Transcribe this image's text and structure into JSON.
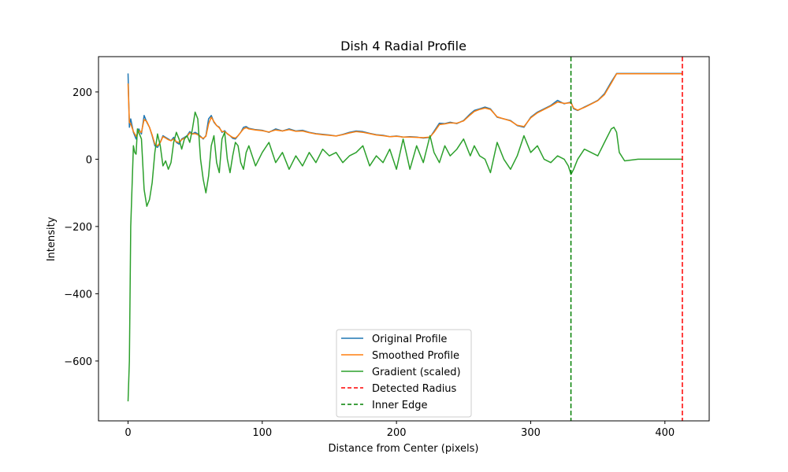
{
  "chart_data": {
    "type": "line",
    "title": "Dish 4 Radial Profile",
    "xlabel": "Distance from Center (pixels)",
    "ylabel": "Intensity",
    "xlim": [
      -22,
      433
    ],
    "ylim": [
      -778,
      305
    ],
    "xticks": [
      0,
      100,
      200,
      300,
      400
    ],
    "yticks": [
      -600,
      -400,
      -200,
      0,
      200
    ],
    "grid": false,
    "legend_position": "lower center",
    "series": [
      {
        "name": "Original Profile",
        "color": "#1f77b4",
        "x": [
          0,
          1,
          2,
          4,
          6,
          8,
          10,
          12,
          14,
          16,
          18,
          20,
          22,
          24,
          26,
          28,
          30,
          32,
          34,
          36,
          38,
          40,
          42,
          44,
          46,
          48,
          50,
          52,
          54,
          56,
          58,
          60,
          62,
          64,
          66,
          68,
          70,
          72,
          74,
          76,
          78,
          80,
          82,
          84,
          86,
          88,
          90,
          95,
          100,
          105,
          110,
          115,
          120,
          125,
          130,
          135,
          140,
          145,
          150,
          155,
          160,
          165,
          170,
          175,
          180,
          185,
          190,
          195,
          200,
          205,
          210,
          215,
          220,
          225,
          228,
          232,
          236,
          240,
          245,
          250,
          255,
          258,
          262,
          266,
          270,
          275,
          280,
          285,
          290,
          295,
          300,
          305,
          310,
          315,
          320,
          325,
          330,
          332,
          335,
          340,
          345,
          350,
          355,
          360,
          364,
          370,
          380,
          390,
          400,
          413
        ],
        "values": [
          255,
          95,
          120,
          80,
          60,
          90,
          75,
          130,
          110,
          95,
          70,
          40,
          35,
          50,
          70,
          65,
          60,
          55,
          65,
          50,
          45,
          60,
          65,
          70,
          82,
          75,
          80,
          75,
          68,
          60,
          70,
          120,
          130,
          110,
          100,
          95,
          80,
          85,
          75,
          70,
          62,
          60,
          70,
          80,
          95,
          97,
          92,
          88,
          86,
          80,
          90,
          84,
          90,
          84,
          86,
          80,
          76,
          74,
          72,
          69,
          74,
          80,
          84,
          82,
          77,
          73,
          71,
          67,
          69,
          66,
          67,
          66,
          63,
          65,
          83,
          107,
          106,
          110,
          106,
          115,
          135,
          145,
          150,
          155,
          150,
          125,
          120,
          115,
          100,
          95,
          125,
          140,
          150,
          160,
          175,
          165,
          170,
          150,
          145,
          155,
          165,
          175,
          195,
          230,
          255,
          255,
          255,
          255,
          255,
          255
        ]
      },
      {
        "name": "Smoothed Profile",
        "color": "#ff7f0e",
        "x": [
          0,
          1,
          2,
          4,
          6,
          8,
          10,
          12,
          14,
          16,
          18,
          20,
          22,
          24,
          26,
          28,
          30,
          32,
          34,
          36,
          38,
          40,
          42,
          44,
          46,
          48,
          50,
          52,
          54,
          56,
          58,
          60,
          62,
          64,
          66,
          68,
          70,
          72,
          74,
          76,
          78,
          80,
          82,
          84,
          86,
          88,
          90,
          95,
          100,
          105,
          110,
          115,
          120,
          125,
          130,
          135,
          140,
          145,
          150,
          155,
          160,
          165,
          170,
          175,
          180,
          185,
          190,
          195,
          200,
          205,
          210,
          215,
          220,
          225,
          228,
          232,
          236,
          240,
          245,
          250,
          255,
          258,
          262,
          266,
          270,
          275,
          280,
          285,
          290,
          295,
          300,
          305,
          310,
          315,
          320,
          325,
          330,
          332,
          335,
          340,
          345,
          350,
          355,
          360,
          364,
          370,
          380,
          390,
          400,
          413
        ],
        "values": [
          225,
          110,
          105,
          82,
          68,
          85,
          80,
          118,
          112,
          95,
          72,
          45,
          40,
          50,
          67,
          63,
          58,
          55,
          60,
          52,
          50,
          58,
          63,
          68,
          78,
          75,
          76,
          73,
          66,
          62,
          68,
          105,
          125,
          112,
          100,
          93,
          82,
          82,
          76,
          70,
          65,
          63,
          70,
          80,
          90,
          94,
          90,
          87,
          85,
          81,
          87,
          84,
          88,
          83,
          84,
          79,
          75,
          73,
          71,
          69,
          73,
          78,
          82,
          80,
          76,
          72,
          70,
          67,
          68,
          66,
          66,
          65,
          64,
          66,
          80,
          103,
          105,
          108,
          107,
          114,
          132,
          142,
          148,
          152,
          148,
          126,
          120,
          114,
          101,
          97,
          123,
          138,
          148,
          158,
          170,
          166,
          168,
          152,
          146,
          154,
          164,
          174,
          192,
          226,
          254,
          254,
          254,
          254,
          254,
          254
        ]
      },
      {
        "name": "Gradient (scaled)",
        "color": "#2ca02c",
        "x": [
          0,
          1,
          2,
          3,
          4,
          5,
          6,
          7,
          8,
          10,
          12,
          14,
          16,
          18,
          20,
          22,
          24,
          26,
          28,
          30,
          32,
          34,
          36,
          38,
          40,
          42,
          44,
          46,
          48,
          50,
          52,
          54,
          56,
          58,
          60,
          62,
          64,
          66,
          68,
          70,
          72,
          74,
          76,
          78,
          80,
          82,
          84,
          86,
          88,
          90,
          95,
          100,
          105,
          110,
          115,
          120,
          125,
          130,
          135,
          140,
          145,
          150,
          155,
          160,
          165,
          170,
          175,
          180,
          185,
          190,
          195,
          200,
          205,
          210,
          215,
          220,
          225,
          228,
          232,
          236,
          240,
          245,
          250,
          255,
          258,
          262,
          266,
          270,
          275,
          280,
          285,
          290,
          295,
          300,
          305,
          310,
          315,
          320,
          325,
          328,
          330,
          332,
          335,
          340,
          345,
          350,
          355,
          360,
          362,
          364,
          366,
          370,
          380,
          390,
          400,
          413
        ],
        "values": [
          -720,
          -600,
          -200,
          -80,
          40,
          20,
          15,
          90,
          80,
          60,
          -90,
          -140,
          -120,
          -70,
          20,
          75,
          40,
          -20,
          -5,
          -30,
          -10,
          50,
          80,
          60,
          30,
          60,
          70,
          50,
          90,
          140,
          120,
          0,
          -60,
          -100,
          -50,
          40,
          70,
          -10,
          -40,
          60,
          80,
          0,
          -40,
          10,
          50,
          40,
          -10,
          -30,
          20,
          40,
          -20,
          20,
          50,
          -10,
          20,
          -30,
          10,
          -20,
          20,
          -10,
          30,
          10,
          20,
          -10,
          10,
          20,
          40,
          -20,
          10,
          -10,
          30,
          -30,
          60,
          -30,
          40,
          -10,
          70,
          20,
          -10,
          40,
          10,
          30,
          60,
          10,
          40,
          10,
          0,
          -40,
          50,
          0,
          -30,
          10,
          70,
          20,
          40,
          0,
          -10,
          10,
          0,
          -20,
          -45,
          -30,
          0,
          30,
          20,
          10,
          50,
          90,
          95,
          80,
          20,
          -5,
          0,
          0,
          0,
          0
        ]
      }
    ],
    "vlines": [
      {
        "name": "Detected Radius",
        "x": 413,
        "color": "#ff0000",
        "style": "dashed"
      },
      {
        "name": "Inner Edge",
        "x": 330,
        "color": "#008000",
        "style": "dashed"
      }
    ]
  }
}
